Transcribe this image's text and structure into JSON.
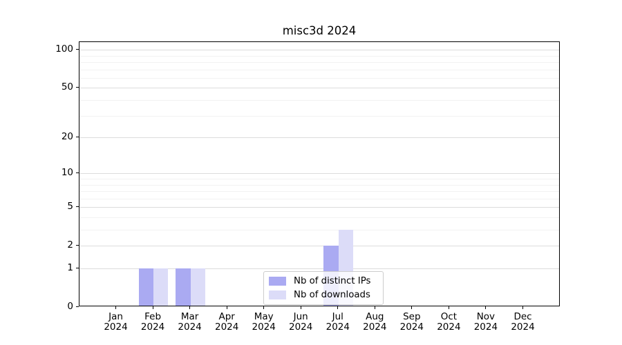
{
  "header": {
    "title": "misc3d 2024"
  },
  "chart_data": {
    "type": "bar",
    "title": "misc3d 2024",
    "categories": [
      "Jan 2024",
      "Feb 2024",
      "Mar 2024",
      "Apr 2024",
      "May 2024",
      "Jun 2024",
      "Jul 2024",
      "Aug 2024",
      "Sep 2024",
      "Oct 2024",
      "Nov 2024",
      "Dec 2024"
    ],
    "x_months": [
      "Jan",
      "Feb",
      "Mar",
      "Apr",
      "May",
      "Jun",
      "Jul",
      "Aug",
      "Sep",
      "Oct",
      "Nov",
      "Dec"
    ],
    "x_year": "2024",
    "series": [
      {
        "name": "Nb of distinct IPs",
        "color": "#aaaaf2",
        "values": [
          0,
          1,
          1,
          0,
          0,
          0,
          2,
          0,
          0,
          0,
          0,
          0
        ]
      },
      {
        "name": "Nb of downloads",
        "color": "#dcdcf8",
        "values": [
          0,
          1,
          1,
          0,
          0,
          0,
          3,
          0,
          0,
          0,
          0,
          0
        ]
      }
    ],
    "yscale": "log1p",
    "ylim": [
      0,
      115
    ],
    "yticks": [
      0,
      1,
      2,
      5,
      10,
      20,
      50,
      100
    ],
    "minor_grid_values": [
      3,
      4,
      6,
      7,
      8,
      9,
      30,
      40,
      60,
      70,
      80,
      90
    ],
    "grid": "horizontal",
    "legend_position": "lower-center"
  },
  "colors": {
    "major_grid": "#dcdcdc",
    "minor_grid": "#f2f2f2",
    "axis": "#000000",
    "legend_border": "#cccccc",
    "background": "#ffffff"
  }
}
